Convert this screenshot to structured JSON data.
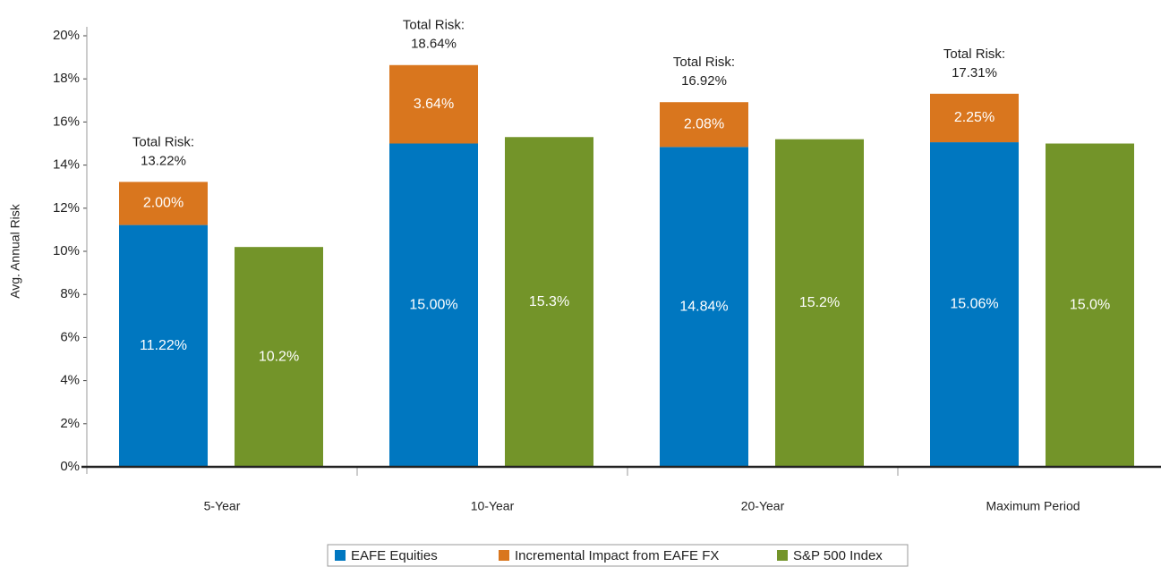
{
  "chart_data": {
    "type": "grouped_stacked_bar",
    "ylabel": "Avg. Annual Risk",
    "categories": [
      "5-Year",
      "10-Year",
      "20-Year",
      "Maximum Period"
    ],
    "series": [
      {
        "name": "EAFE Equities",
        "color": "#0077c0",
        "stack": "EAFE",
        "values": [
          11.22,
          15.0,
          14.84,
          15.06
        ],
        "value_labels": [
          "11.22%",
          "15.00%",
          "14.84%",
          "15.06%"
        ]
      },
      {
        "name": "Incremental Impact from EAFE FX",
        "color": "#d9761e",
        "stack": "EAFE",
        "values": [
          2.0,
          3.64,
          2.08,
          2.25
        ],
        "value_labels": [
          "2.00%",
          "3.64%",
          "2.08%",
          "2.25%"
        ]
      },
      {
        "name": "S&P 500 Index",
        "color": "#739429",
        "stack": "SP",
        "values": [
          10.2,
          15.3,
          15.2,
          15.0
        ],
        "value_labels": [
          "10.2%",
          "15.3%",
          "15.2%",
          "15.0%"
        ]
      }
    ],
    "annotations": [
      [
        "Total Risk:",
        "13.22%"
      ],
      [
        "Total Risk:",
        "18.64%"
      ],
      [
        "Total Risk:",
        "16.92%"
      ],
      [
        "Total Risk:",
        "17.31%"
      ]
    ],
    "ylim": [
      0,
      20
    ],
    "yticks": [
      {
        "value": 0,
        "label": "0%"
      },
      {
        "value": 2,
        "label": "2%"
      },
      {
        "value": 4,
        "label": "4%"
      },
      {
        "value": 6,
        "label": "6%"
      },
      {
        "value": 8,
        "label": "8%"
      },
      {
        "value": 10,
        "label": "10%"
      },
      {
        "value": 12,
        "label": "12%"
      },
      {
        "value": 14,
        "label": "14%"
      },
      {
        "value": 16,
        "label": "16%"
      },
      {
        "value": 18,
        "label": "18%"
      },
      {
        "value": 20,
        "label": "20%"
      }
    ],
    "grid": false,
    "legend": "bottom"
  }
}
